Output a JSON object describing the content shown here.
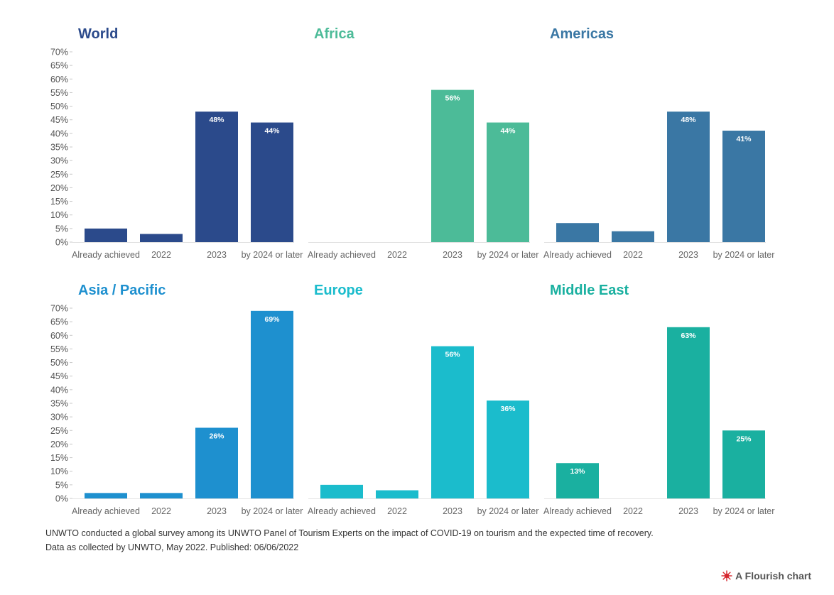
{
  "chart_data": [
    {
      "type": "bar",
      "title": "World",
      "color": "#2b4a8b",
      "categories": [
        "Already achieved",
        "2022",
        "2023",
        "by 2024 or later"
      ],
      "values": [
        5,
        3,
        48,
        44
      ],
      "labels": [
        "",
        "",
        "48%",
        "44%"
      ],
      "ylim": [
        0,
        70
      ]
    },
    {
      "type": "bar",
      "title": "Africa",
      "color": "#4cbb98",
      "categories": [
        "Already achieved",
        "2022",
        "2023",
        "by 2024 or later"
      ],
      "values": [
        0,
        0,
        56,
        44
      ],
      "labels": [
        "",
        "",
        "56%",
        "44%"
      ],
      "ylim": [
        0,
        70
      ]
    },
    {
      "type": "bar",
      "title": "Americas",
      "color": "#3a77a4",
      "categories": [
        "Already achieved",
        "2022",
        "2023",
        "by 2024 or later"
      ],
      "values": [
        7,
        4,
        48,
        41
      ],
      "labels": [
        "",
        "",
        "48%",
        "41%"
      ],
      "ylim": [
        0,
        70
      ]
    },
    {
      "type": "bar",
      "title": "Asia / Pacific",
      "color": "#1e90cf",
      "categories": [
        "Already achieved",
        "2022",
        "2023",
        "by 2024 or later"
      ],
      "values": [
        2,
        2,
        26,
        69
      ],
      "labels": [
        "",
        "",
        "26%",
        "69%"
      ],
      "ylim": [
        0,
        70
      ]
    },
    {
      "type": "bar",
      "title": "Europe",
      "color": "#1bbccc",
      "categories": [
        "Already achieved",
        "2022",
        "2023",
        "by 2024 or later"
      ],
      "values": [
        5,
        3,
        56,
        36
      ],
      "labels": [
        "",
        "",
        "56%",
        "36%"
      ],
      "ylim": [
        0,
        70
      ]
    },
    {
      "type": "bar",
      "title": "Middle East",
      "color": "#1ab0a0",
      "categories": [
        "Already achieved",
        "2022",
        "2023",
        "by 2024 or later"
      ],
      "values": [
        13,
        0,
        63,
        25
      ],
      "labels": [
        "13%",
        "",
        "63%",
        "25%"
      ],
      "ylim": [
        0,
        70
      ]
    }
  ],
  "y_ticks": [
    "0%",
    "5%",
    "10%",
    "15%",
    "20%",
    "25%",
    "30%",
    "35%",
    "40%",
    "45%",
    "50%",
    "55%",
    "60%",
    "65%",
    "70%"
  ],
  "footnote": {
    "line1": "UNWTO conducted a global survey among its UNWTO Panel of Tourism Experts on the impact of COVID-19 on tourism and the expected time of recovery.",
    "line2": "Data as collected by UNWTO, May 2022. Published: 06/06/2022"
  },
  "credit": {
    "label": "A Flourish chart",
    "icon": "flourish-logo-icon",
    "icon_color": "#d6272f"
  }
}
